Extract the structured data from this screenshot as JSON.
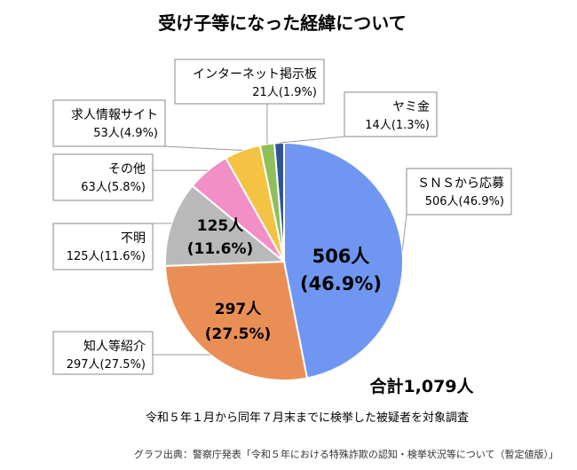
{
  "chart_data": {
    "type": "pie",
    "title": "受け子等になった経緯について",
    "slices": [
      {
        "label": "ＳＮＳから応募",
        "count": "506人",
        "pct": "(46.9%)",
        "inner_pct": "(46.9%)",
        "value": 506,
        "color": "#6f97f2"
      },
      {
        "label": "知人等紹介",
        "count": "297人",
        "pct": "(27.5%)",
        "inner_pct": "(27.5%)",
        "value": 297,
        "color": "#e98f56"
      },
      {
        "label": "不明",
        "count": "125人",
        "pct": "(11.6%)",
        "inner_pct": "(11.6%)",
        "value": 125,
        "color": "#b9b9b9"
      },
      {
        "label": "その他",
        "count": "63人",
        "pct": "(5.8%)",
        "value": 63,
        "color": "#f28fc6"
      },
      {
        "label": "求人情報サイト",
        "count": "53人",
        "pct": "(4.9%)",
        "value": 53,
        "color": "#f5c343"
      },
      {
        "label": "インターネット掲示板",
        "count": "21人",
        "pct": "(1.9%)",
        "value": 21,
        "color": "#8fbf5a"
      },
      {
        "label": "ヤミ金",
        "count": "14人",
        "pct": "(1.3%)",
        "value": 14,
        "color": "#2f5597"
      }
    ],
    "total_label": "合計1,079人",
    "note": "令和５年１月から同年７月末までに検挙した被疑者を対象調査",
    "source": "グラフ出典：警察庁発表「令和５年における特殊詐欺の認知・検挙状況等について（暫定値版）」"
  }
}
